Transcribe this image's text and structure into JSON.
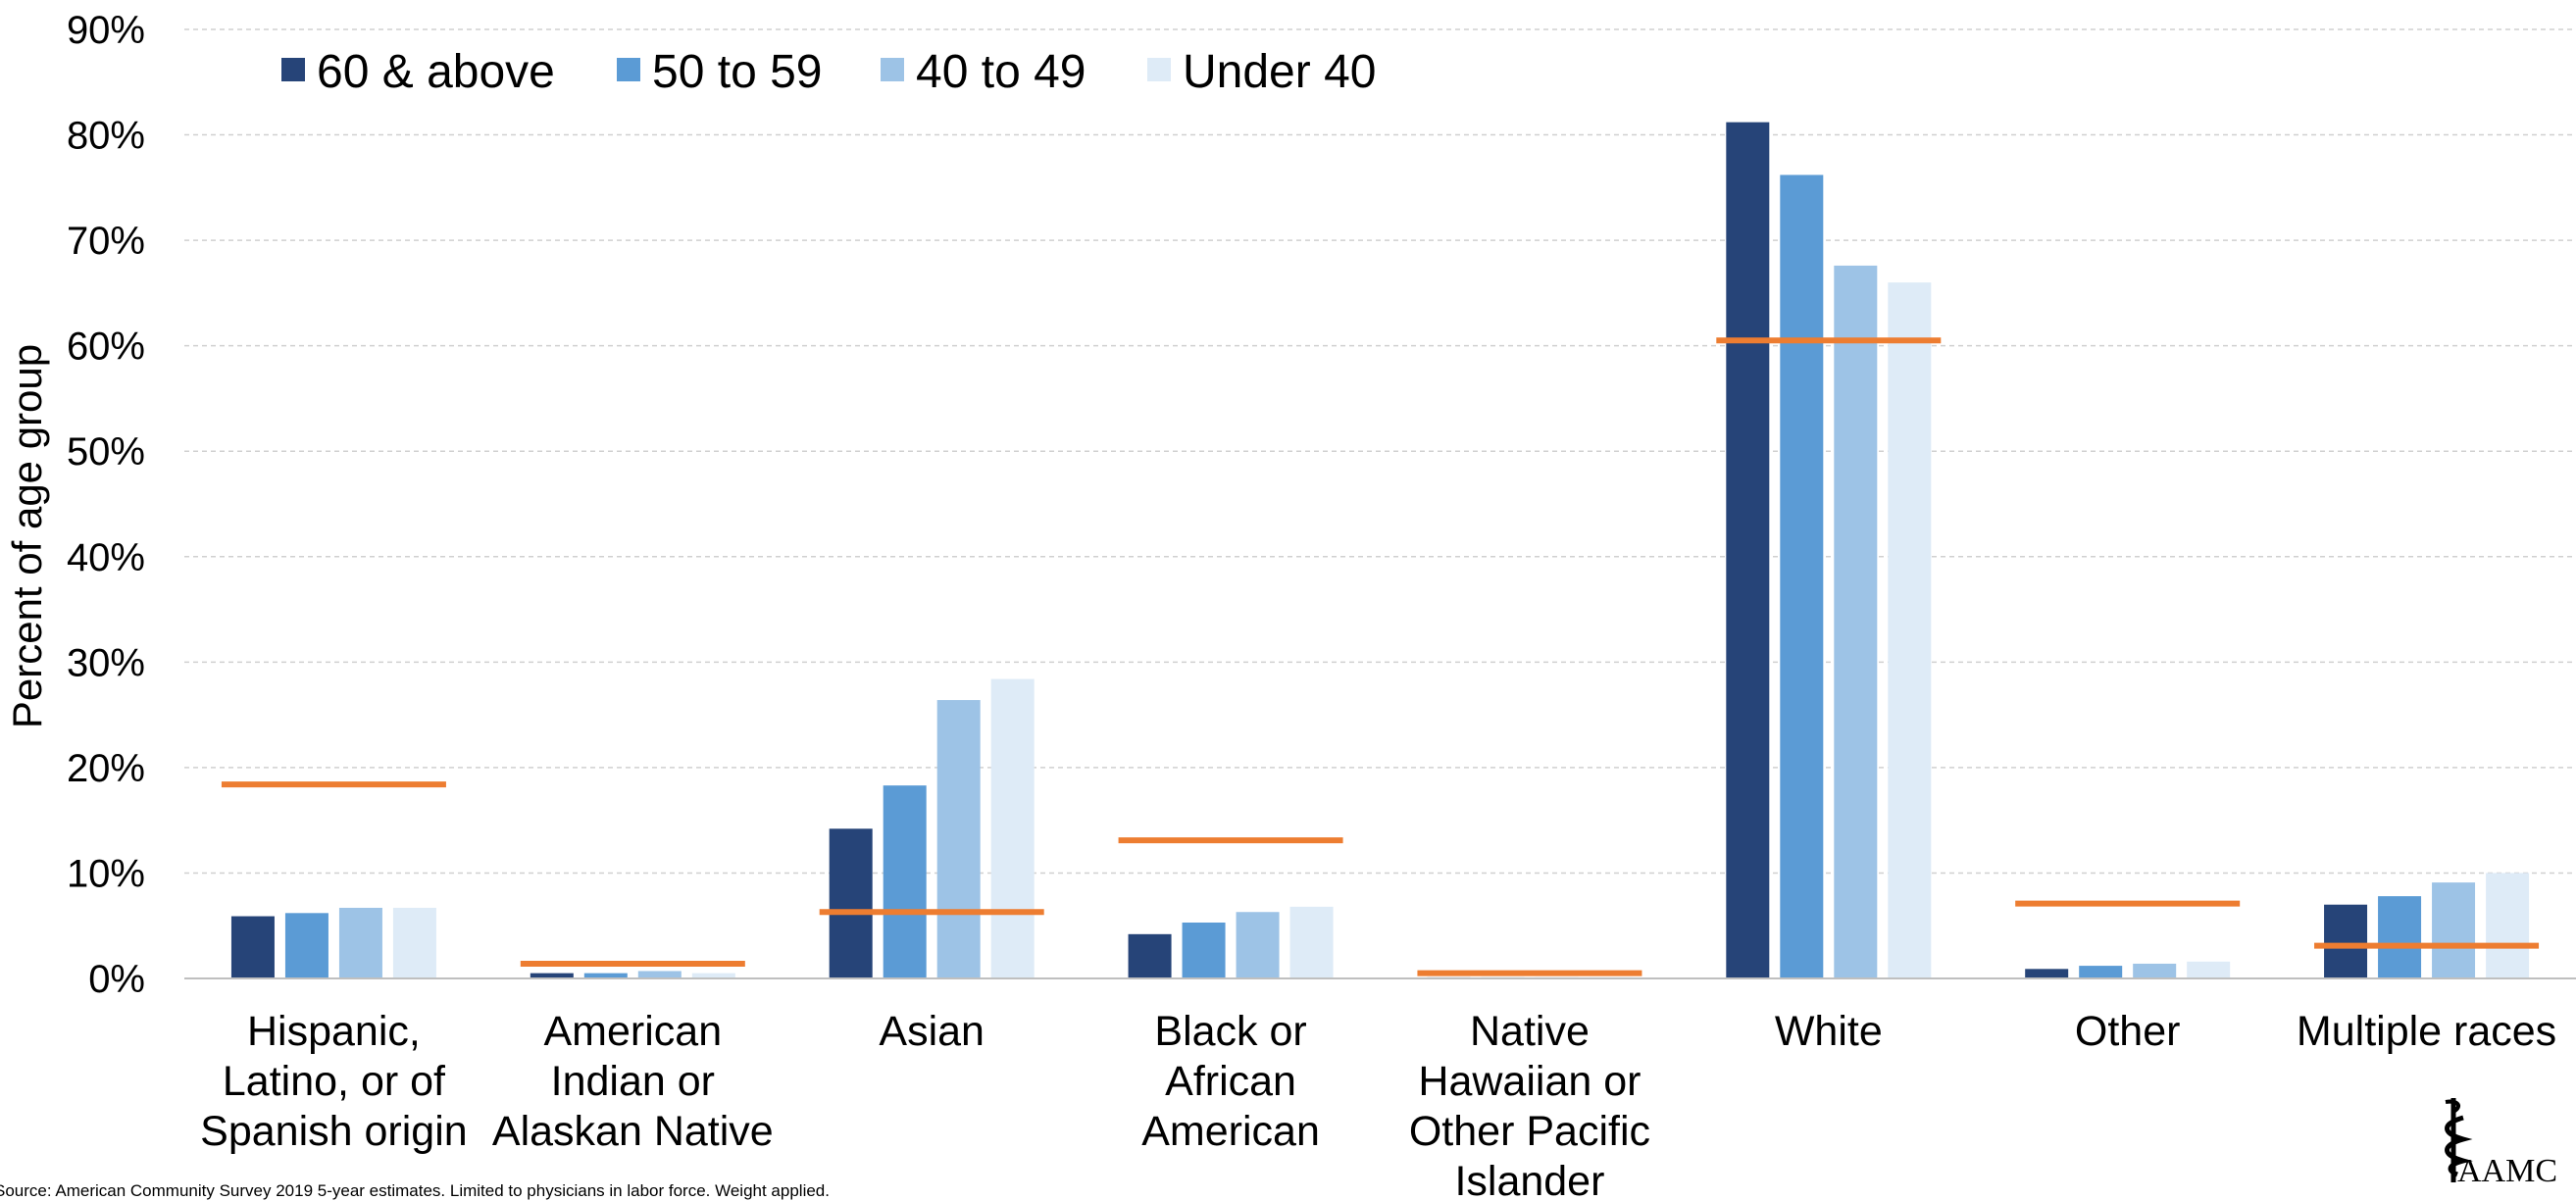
{
  "chart_data": {
    "type": "bar",
    "ylabel": "Percent of age group",
    "y_ticks": [
      "0%",
      "10%",
      "20%",
      "30%",
      "40%",
      "50%",
      "60%",
      "70%",
      "80%",
      "90%"
    ],
    "ylim": [
      0,
      90
    ],
    "grid": true,
    "legend_position": "top-left",
    "categories": [
      [
        "Hispanic,",
        "Latino, or of",
        "Spanish origin"
      ],
      [
        "American",
        "Indian or",
        "Alaskan Native"
      ],
      [
        "Asian"
      ],
      [
        "Black or",
        "African",
        "American"
      ],
      [
        "Native",
        "Hawaiian or",
        "Other Pacific",
        "Islander"
      ],
      [
        "White"
      ],
      [
        "Other"
      ],
      [
        "Multiple races"
      ]
    ],
    "series": [
      {
        "name": "60 & above",
        "color": "#264478",
        "values": [
          5.9,
          0.5,
          14.2,
          4.2,
          0.1,
          81.2,
          0.9,
          7.0
        ]
      },
      {
        "name": "50 to 59",
        "color": "#5b9bd5",
        "values": [
          6.2,
          0.5,
          18.3,
          5.3,
          0.1,
          76.2,
          1.2,
          7.8
        ]
      },
      {
        "name": "40 to 49",
        "color": "#9dc3e6",
        "values": [
          6.7,
          0.7,
          26.4,
          6.3,
          0.1,
          67.6,
          1.4,
          9.1
        ]
      },
      {
        "name": "Under 40",
        "color": "#deebf7",
        "values": [
          6.7,
          0.5,
          28.4,
          6.8,
          0.1,
          66.0,
          1.6,
          10.0
        ]
      }
    ],
    "reference": {
      "color": "#ed7d31",
      "values": [
        18.4,
        1.4,
        6.3,
        13.1,
        0.5,
        60.5,
        7.1,
        3.1
      ]
    }
  },
  "source_note": "Source: American Community Survey 2019 5-year estimates. Limited to physicians in labor force. Weight applied.",
  "logo": {
    "text": "AAMC"
  }
}
